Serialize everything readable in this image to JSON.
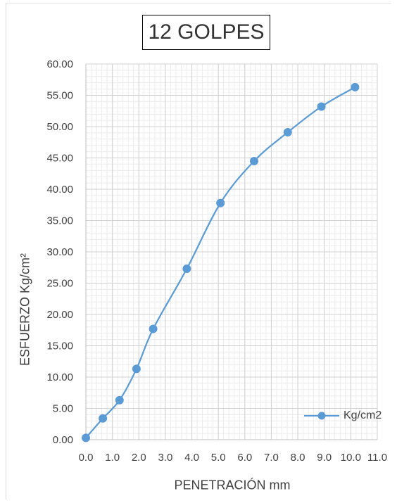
{
  "chart_data": {
    "type": "line",
    "title": "12 GOLPES",
    "xlabel": "PENETRACIÓN mm",
    "ylabel": "ESFUERZO Kg/cm²",
    "xlim": [
      0.0,
      11.0
    ],
    "ylim": [
      0.0,
      60.0
    ],
    "x_ticks": [
      "0.0",
      "1.0",
      "2.0",
      "3.0",
      "4.0",
      "5.0",
      "6.0",
      "7.0",
      "8.0",
      "9.0",
      "10.0",
      "11.0"
    ],
    "y_ticks": [
      "0.00",
      "5.00",
      "10.00",
      "15.00",
      "20.00",
      "25.00",
      "30.00",
      "35.00",
      "40.00",
      "45.00",
      "50.00",
      "55.00",
      "60.00"
    ],
    "grid": true,
    "legend_position": "bottom-right",
    "series": [
      {
        "name": "Kg/cm2",
        "color": "#5b9bd5",
        "marker": "circle",
        "smooth": true,
        "x": [
          0.0,
          0.64,
          1.27,
          1.91,
          2.54,
          3.81,
          5.08,
          6.35,
          7.62,
          8.89,
          10.16
        ],
        "y": [
          0.3,
          3.4,
          6.3,
          11.3,
          17.7,
          27.3,
          37.8,
          44.5,
          49.1,
          53.2,
          56.3
        ]
      }
    ]
  }
}
